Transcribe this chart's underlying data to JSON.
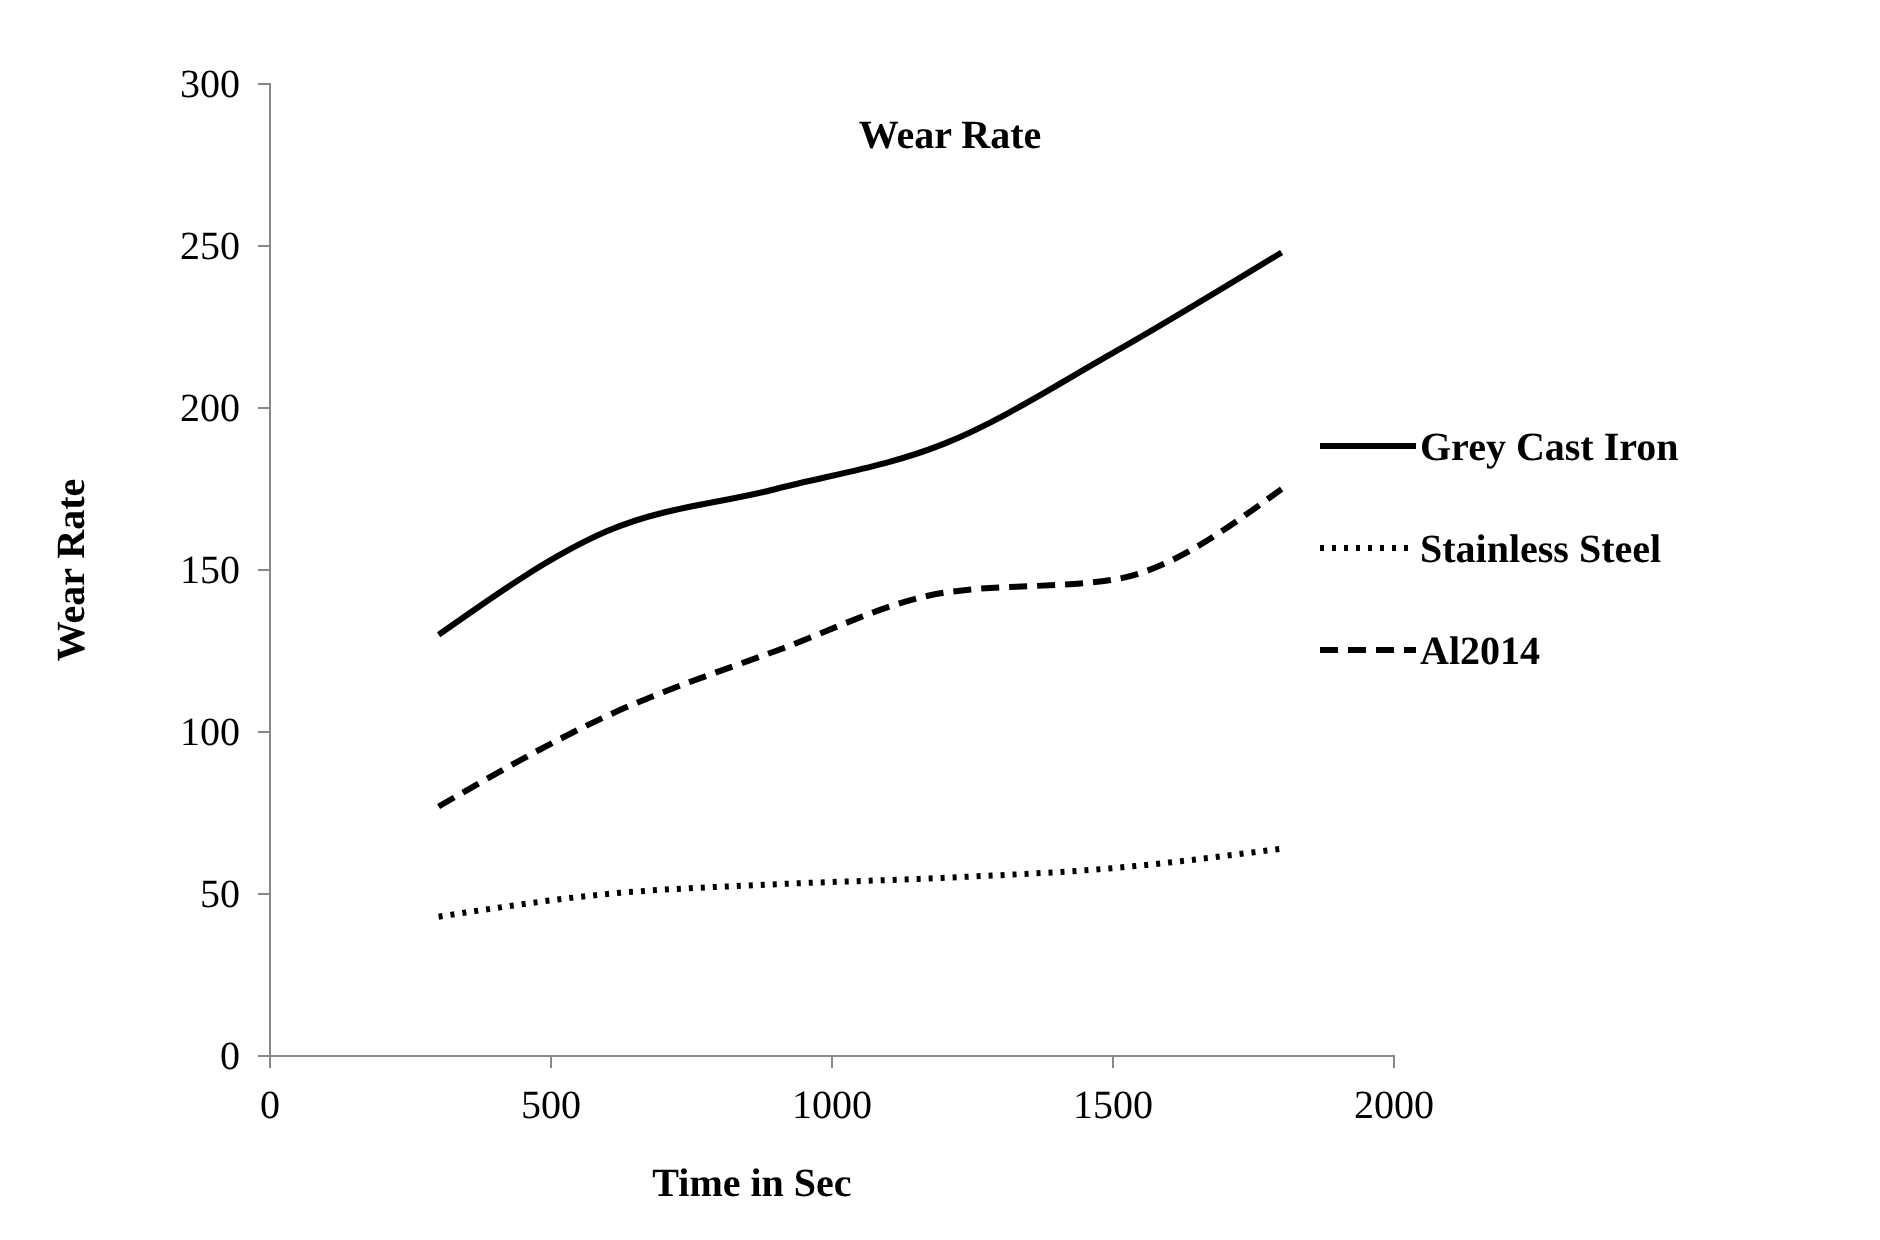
{
  "chart_data": {
    "type": "line",
    "title": "Wear Rate",
    "xlabel": "Time in Sec",
    "ylabel": "Wear Rate",
    "x": [
      300,
      600,
      900,
      1200,
      1500,
      1800
    ],
    "series": [
      {
        "name": "Grey Cast Iron",
        "color": "#000000",
        "line_style": "solid",
        "values": [
          130,
          162,
          175,
          189,
          217,
          248
        ]
      },
      {
        "name": "Stainless Steel",
        "color": "#000000",
        "line_style": "dotted",
        "values": [
          43,
          50,
          53,
          55,
          58,
          64
        ]
      },
      {
        "name": "Al2014",
        "color": "#000000",
        "line_style": "dashed",
        "values": [
          77,
          105,
          125,
          143,
          147,
          175
        ]
      }
    ],
    "xlim": [
      0,
      2000
    ],
    "xticks": [
      0,
      500,
      1000,
      1500,
      2000
    ],
    "ylim": [
      0,
      300
    ],
    "yticks": [
      0,
      50,
      100,
      150,
      200,
      250,
      300
    ],
    "grid": false,
    "legend": "right",
    "marker": "none"
  }
}
